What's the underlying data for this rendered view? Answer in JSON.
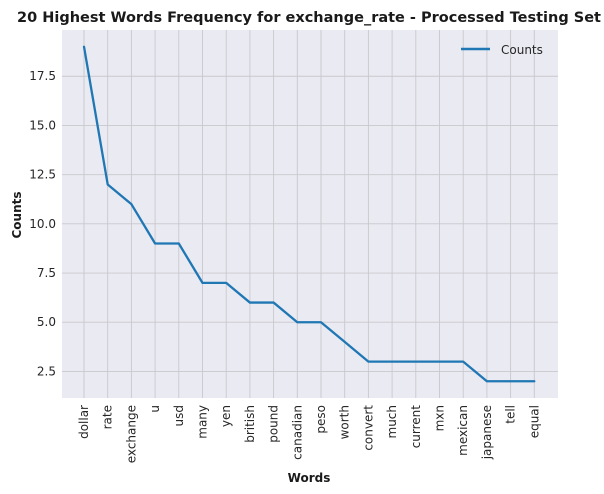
{
  "chart_data": {
    "type": "line",
    "title": "20 Highest Words Frequency for exchange_rate - Processed Testing Set",
    "xlabel": "Words",
    "ylabel": "Counts",
    "categories": [
      "dollar",
      "rate",
      "exchange",
      "u",
      "usd",
      "many",
      "yen",
      "british",
      "pound",
      "canadian",
      "peso",
      "worth",
      "convert",
      "much",
      "current",
      "mxn",
      "mexican",
      "japanese",
      "tell",
      "equal"
    ],
    "series": [
      {
        "name": "Counts",
        "values": [
          19,
          12,
          11,
          9,
          9,
          7,
          7,
          6,
          6,
          5,
          5,
          4,
          3,
          3,
          3,
          3,
          3,
          2,
          2,
          2
        ]
      }
    ],
    "yticks": [
      "2.5",
      "5.0",
      "7.5",
      "10.0",
      "12.5",
      "15.0",
      "17.5"
    ],
    "ylim": [
      1.15,
      19.85
    ],
    "grid": true,
    "legend_position": "top-right",
    "colors": {
      "line": "#1f77b4",
      "plot_bg": "#eaeaf2",
      "grid": "#c8c8cc"
    }
  }
}
